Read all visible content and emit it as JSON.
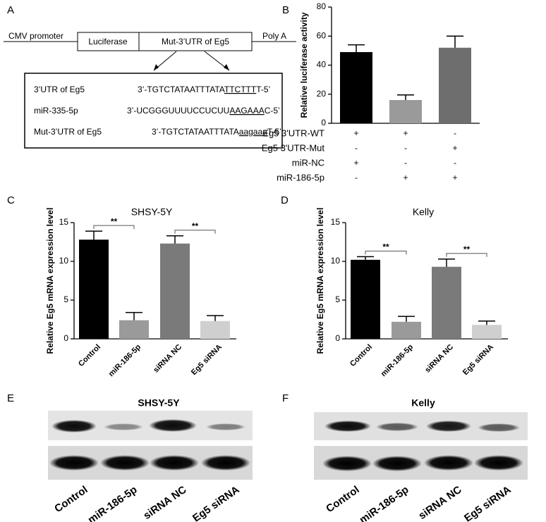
{
  "panel_labels": [
    "A",
    "B",
    "C",
    "D",
    "E",
    "F"
  ],
  "diagram": {
    "elements": [
      "CMV promoter",
      "Luciferase",
      "Mut-3’UTR of Eg5",
      "Poly A"
    ],
    "sequences": [
      {
        "name": "3’UTR of Eg5",
        "prefix": "3’-TGTCTATAATTTATA",
        "site": "TTCTTT",
        "suffix": "T-5’"
      },
      {
        "name": "miR-335-5p",
        "prefix": "3’-UCGGGUUUUCCUCUU",
        "site": "AAGAAA",
        "suffix": "C-5’"
      },
      {
        "name": "Mut-3’UTR of Eg5",
        "prefix": "3’-TGTCTATAATTTATA",
        "site": "aagaaa",
        "suffix": "T-5’"
      }
    ]
  },
  "chart_data": [
    {
      "type": "bar",
      "ylabel": "Relative  luciferase activity",
      "categories": [
        null,
        null,
        null
      ],
      "values": [
        49,
        16,
        52
      ],
      "errors": [
        5,
        3.5,
        8
      ],
      "colors": [
        "#000000",
        "#9a9a9a",
        "#6e6e6e"
      ],
      "ylim": [
        0,
        80
      ],
      "yticks": [
        0,
        20,
        40,
        60,
        80
      ],
      "conditions": [
        {
          "label": "Eg5 3'UTR-WT",
          "signs": [
            "+",
            "+",
            "-"
          ]
        },
        {
          "label": "Eg5 3'UTR-Mut",
          "signs": [
            "-",
            "-",
            "+"
          ]
        },
        {
          "label": "miR-NC",
          "signs": [
            "+",
            "-",
            "-"
          ]
        },
        {
          "label": "miR-186-5p",
          "signs": [
            "-",
            "+",
            "+"
          ]
        }
      ]
    },
    {
      "type": "bar",
      "title": "SHSY-5Y",
      "ylabel": "Relative Eg5 mRNA expression level",
      "categories": [
        "Control",
        "miR-186-5p",
        "siRNA NC",
        "Eg5 siRNA"
      ],
      "values": [
        12.8,
        2.4,
        12.3,
        2.3
      ],
      "errors": [
        1.1,
        1.0,
        1.0,
        0.7
      ],
      "colors": [
        "#000000",
        "#9a9a9a",
        "#7a7a7a",
        "#cfcfcf"
      ],
      "ylim": [
        0,
        15
      ],
      "yticks": [
        0,
        5,
        10,
        15
      ],
      "annotations": [
        "**",
        "**"
      ]
    },
    {
      "type": "bar",
      "title": "Kelly",
      "ylabel": "Relative Eg5 mRNA expression level",
      "categories": [
        "Control",
        "miR-186-5p",
        "siRNA NC",
        "Eg5 siRNA"
      ],
      "values": [
        10.2,
        2.2,
        9.3,
        1.8
      ],
      "errors": [
        0.4,
        0.7,
        1.0,
        0.5
      ],
      "colors": [
        "#000000",
        "#9a9a9a",
        "#7a7a7a",
        "#cfcfcf"
      ],
      "ylim": [
        0,
        15
      ],
      "yticks": [
        0,
        5,
        10,
        15
      ],
      "annotations": [
        "**",
        "**"
      ]
    }
  ],
  "blots": [
    {
      "title": "SHSY-5Y",
      "lanes": [
        "Control",
        "miR-186-5p",
        "siRNA NC",
        "Eg5 siRNA"
      ]
    },
    {
      "title": "Kelly",
      "lanes": [
        "Control",
        "miR-186-5p",
        "siRNA NC",
        "Eg5 siRNA"
      ]
    }
  ]
}
